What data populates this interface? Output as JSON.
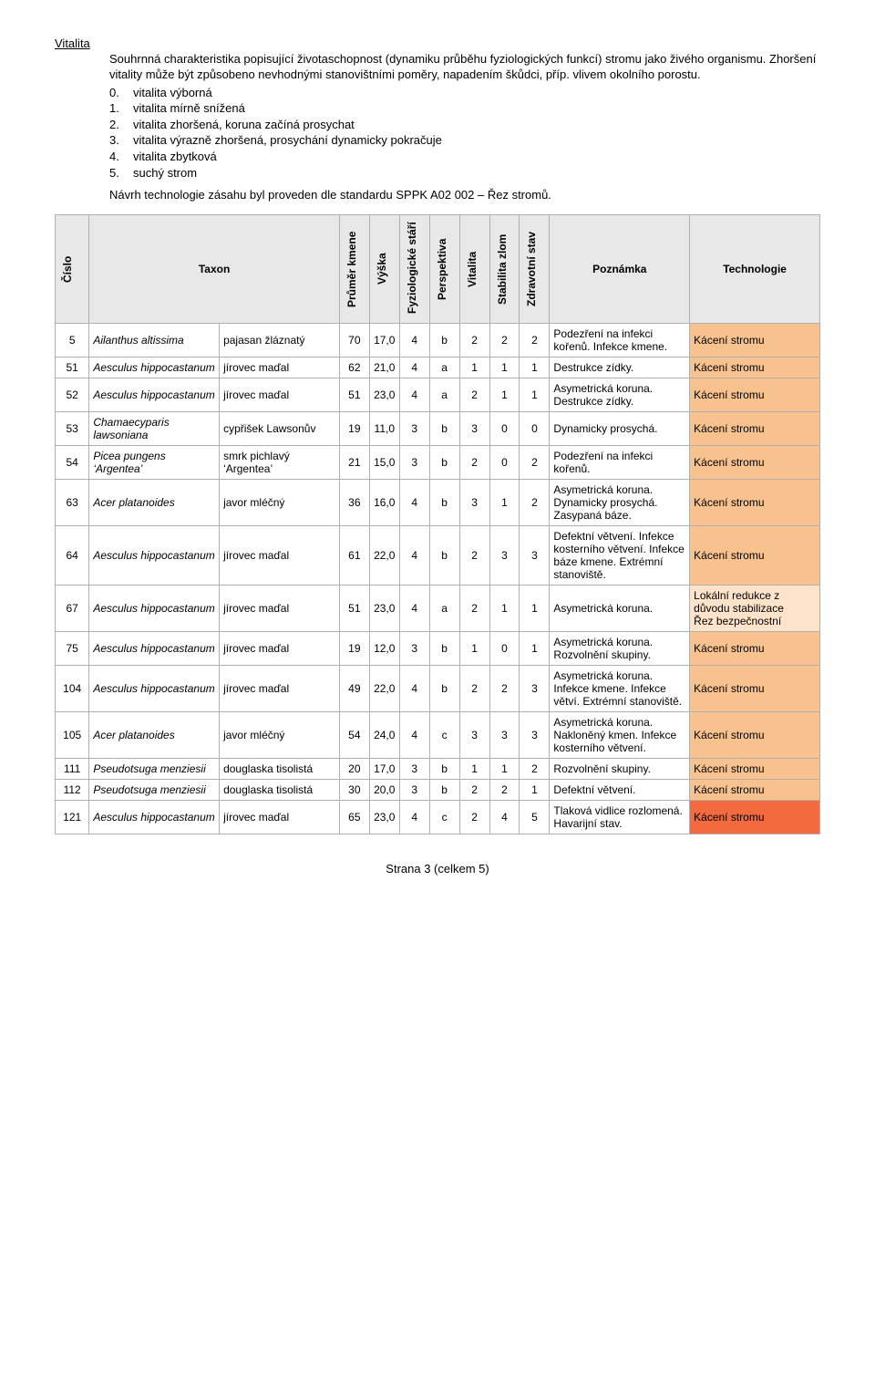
{
  "section": {
    "title": "Vitalita",
    "intro1": "Souhrnná charakteristika popisující životaschopnost (dynamiku průběhu fyziologických funkcí) stromu jako živého organismu. Zhoršení vitality může být způsobeno nevhodnými stanovištními poměry, napadením škůdci, příp. vlivem okolního porostu.",
    "scale": [
      {
        "n": "0.",
        "t": "vitalita výborná"
      },
      {
        "n": "1.",
        "t": "vitalita mírně snížená"
      },
      {
        "n": "2.",
        "t": "vitalita zhoršená, koruna začíná prosychat"
      },
      {
        "n": "3.",
        "t": "vitalita výrazně zhoršená, prosychání dynamicky pokračuje"
      },
      {
        "n": "4.",
        "t": "vitalita zbytková"
      },
      {
        "n": "5.",
        "t": "suchý strom"
      }
    ],
    "standard": "Návrh technologie zásahu byl proveden dle standardu SPPK A02 002 – Řez stromů."
  },
  "table": {
    "headers": {
      "cislo": "Číslo",
      "taxon": "Taxon",
      "taxon_common": "",
      "prumer": "Průměr kmene",
      "vyska": "Výška",
      "stari": "Fyziologické stáří",
      "perspektiva": "Perspektiva",
      "vitalita": "Vitalita",
      "stabilita": "Stabilita zlom",
      "zdrav": "Zdravotní stav",
      "poznamka": "Poznámka",
      "technologie": "Technologie"
    },
    "colors": {
      "header_bg": "#e8e8e8",
      "tech_default": "#f7c28e",
      "tech_light": "#fde3c9",
      "tech_critical": "#f26a3d"
    },
    "rows": [
      {
        "id": "5",
        "taxon": "Ailanthus altissima",
        "common": "pajasan žláznatý",
        "prumer": "70",
        "vyska": "17,0",
        "stari": "4",
        "persp": "b",
        "vital": "2",
        "stab": "2",
        "zdrav": "2",
        "note": "Podezření na infekci kořenů. Infekce kmene.",
        "tech": "Kácení stromu",
        "tech_color": "#f7c28e"
      },
      {
        "id": "51",
        "taxon": "Aesculus hippocastanum",
        "common": "jírovec maďal",
        "prumer": "62",
        "vyska": "21,0",
        "stari": "4",
        "persp": "a",
        "vital": "1",
        "stab": "1",
        "zdrav": "1",
        "note": "Destrukce zídky.",
        "tech": "Kácení stromu",
        "tech_color": "#f7c28e"
      },
      {
        "id": "52",
        "taxon": "Aesculus hippocastanum",
        "common": "jírovec maďal",
        "prumer": "51",
        "vyska": "23,0",
        "stari": "4",
        "persp": "a",
        "vital": "2",
        "stab": "1",
        "zdrav": "1",
        "note": "Asymetrická koruna. Destrukce zídky.",
        "tech": "Kácení stromu",
        "tech_color": "#f7c28e"
      },
      {
        "id": "53",
        "taxon": "Chamaecyparis lawsoniana",
        "common": "cypřišek Lawsonův",
        "prumer": "19",
        "vyska": "11,0",
        "stari": "3",
        "persp": "b",
        "vital": "3",
        "stab": "0",
        "zdrav": "0",
        "note": "Dynamicky prosychá.",
        "tech": "Kácení stromu",
        "tech_color": "#f7c28e"
      },
      {
        "id": "54",
        "taxon": "Picea pungens ‘Argentea’",
        "common": "smrk pichlavý ‘Argentea’",
        "prumer": "21",
        "vyska": "15,0",
        "stari": "3",
        "persp": "b",
        "vital": "2",
        "stab": "0",
        "zdrav": "2",
        "note": "Podezření na infekci kořenů.",
        "tech": "Kácení stromu",
        "tech_color": "#f7c28e"
      },
      {
        "id": "63",
        "taxon": "Acer platanoides",
        "common": "javor mléčný",
        "prumer": "36",
        "vyska": "16,0",
        "stari": "4",
        "persp": "b",
        "vital": "3",
        "stab": "1",
        "zdrav": "2",
        "note": "Asymetrická koruna. Dynamicky prosychá. Zasypaná báze.",
        "tech": "Kácení stromu",
        "tech_color": "#f7c28e"
      },
      {
        "id": "64",
        "taxon": "Aesculus hippocastanum",
        "common": "jírovec maďal",
        "prumer": "61",
        "vyska": "22,0",
        "stari": "4",
        "persp": "b",
        "vital": "2",
        "stab": "3",
        "zdrav": "3",
        "note": "Defektní větvení. Infekce kosterního větvení. Infekce báze kmene. Extrémní stanoviště.",
        "tech": "Kácení stromu",
        "tech_color": "#f7c28e"
      },
      {
        "id": "67",
        "taxon": "Aesculus hippocastanum",
        "common": "jírovec maďal",
        "prumer": "51",
        "vyska": "23,0",
        "stari": "4",
        "persp": "a",
        "vital": "2",
        "stab": "1",
        "zdrav": "1",
        "note": "Asymetrická koruna.",
        "tech": "Lokální redukce z důvodu stabilizace\nŘez bezpečnostní",
        "tech_color": "#fde3c9"
      },
      {
        "id": "75",
        "taxon": "Aesculus hippocastanum",
        "common": "jírovec maďal",
        "prumer": "19",
        "vyska": "12,0",
        "stari": "3",
        "persp": "b",
        "vital": "1",
        "stab": "0",
        "zdrav": "1",
        "note": "Asymetrická koruna. Rozvolnění skupiny.",
        "tech": "Kácení stromu",
        "tech_color": "#f7c28e"
      },
      {
        "id": "104",
        "taxon": "Aesculus hippocastanum",
        "common": "jírovec maďal",
        "prumer": "49",
        "vyska": "22,0",
        "stari": "4",
        "persp": "b",
        "vital": "2",
        "stab": "2",
        "zdrav": "3",
        "note": "Asymetrická koruna. Infekce kmene. Infekce větví. Extrémní stanoviště.",
        "tech": "Kácení stromu",
        "tech_color": "#f7c28e"
      },
      {
        "id": "105",
        "taxon": "Acer platanoides",
        "common": "javor mléčný",
        "prumer": "54",
        "vyska": "24,0",
        "stari": "4",
        "persp": "c",
        "vital": "3",
        "stab": "3",
        "zdrav": "3",
        "note": "Asymetrická koruna. Nakloněný kmen. Infekce kosterního větvení.",
        "tech": "Kácení stromu",
        "tech_color": "#f7c28e"
      },
      {
        "id": "111",
        "taxon": "Pseudotsuga menziesii",
        "common": "douglaska tisolistá",
        "prumer": "20",
        "vyska": "17,0",
        "stari": "3",
        "persp": "b",
        "vital": "1",
        "stab": "1",
        "zdrav": "2",
        "note": "Rozvolnění skupiny.",
        "tech": "Kácení stromu",
        "tech_color": "#f7c28e"
      },
      {
        "id": "112",
        "taxon": "Pseudotsuga menziesii",
        "common": "douglaska tisolistá",
        "prumer": "30",
        "vyska": "20,0",
        "stari": "3",
        "persp": "b",
        "vital": "2",
        "stab": "2",
        "zdrav": "1",
        "note": "Defektní větvení.",
        "tech": "Kácení stromu",
        "tech_color": "#f7c28e"
      },
      {
        "id": "121",
        "taxon": "Aesculus hippocastanum",
        "common": "jírovec maďal",
        "prumer": "65",
        "vyska": "23,0",
        "stari": "4",
        "persp": "c",
        "vital": "2",
        "stab": "4",
        "zdrav": "5",
        "note": "Tlaková vidlice rozlomená. Havarijní stav.",
        "tech": "Kácení stromu",
        "tech_color": "#f26a3d"
      }
    ]
  },
  "footer": "Strana 3 (celkem 5)"
}
